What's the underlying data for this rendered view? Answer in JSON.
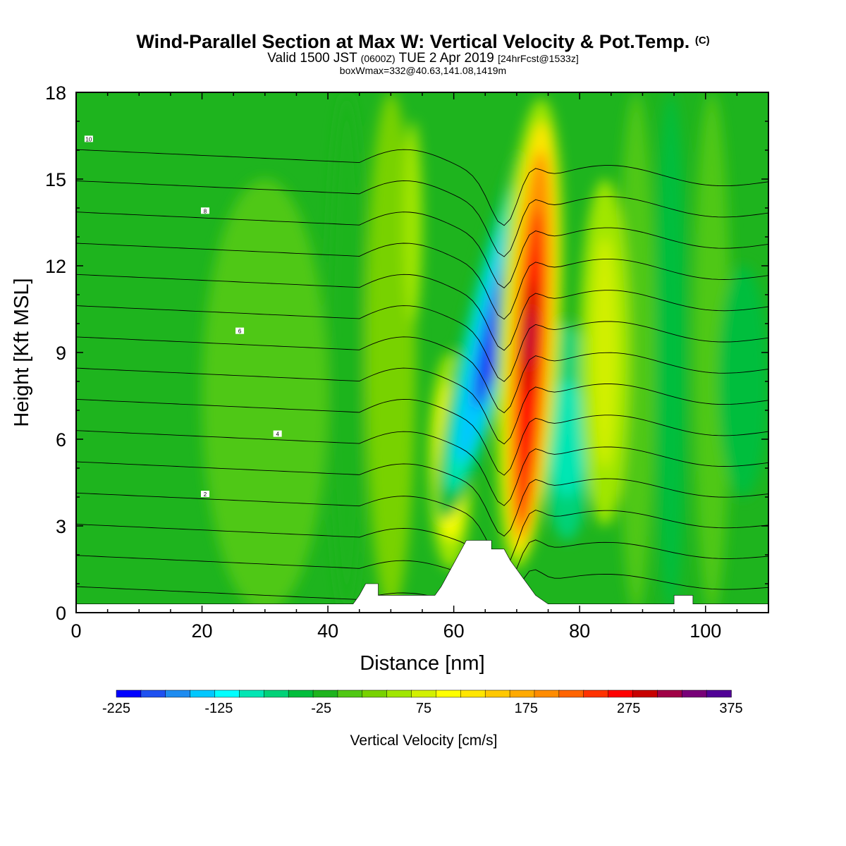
{
  "title": {
    "main": "Wind-Parallel Section at Max W: Vertical Velocity & Pot.Temp.",
    "mark": "(C)",
    "valid_prefix": "Valid 1500 JST",
    "valid_utc": "(0600Z)",
    "valid_date": "TUE 2 Apr 2019",
    "valid_fcst": "[24hrFcst@1533z]",
    "box": "boxWmax=332@40.63,141.08,1419m"
  },
  "chart_data": {
    "type": "heatmap",
    "xlabel": "Distance [nm]",
    "ylabel": "Height [Kft MSL]",
    "xlim": [
      0,
      110
    ],
    "ylim": [
      0,
      18
    ],
    "x_ticks": [
      0,
      20,
      40,
      60,
      80,
      100
    ],
    "y_ticks": [
      0,
      3,
      6,
      9,
      12,
      15,
      18
    ],
    "colorbar": {
      "title": "Vertical Velocity [cm/s]",
      "min": -225,
      "max": 375,
      "step": 25,
      "labels": [
        "-225",
        "-125",
        "-25",
        "75",
        "175",
        "275",
        "375"
      ],
      "colors": [
        "#0000ff",
        "#1e50f0",
        "#1e8cf0",
        "#00c8ff",
        "#00ffff",
        "#00e6b4",
        "#00d278",
        "#00be3c",
        "#1eb41e",
        "#50c814",
        "#78d200",
        "#a0e600",
        "#d2f000",
        "#ffff00",
        "#ffe600",
        "#ffc800",
        "#ffaa00",
        "#ff8c00",
        "#ff6400",
        "#ff3200",
        "#ff0000",
        "#c80000",
        "#a00046",
        "#780078",
        "#500096"
      ]
    },
    "velocity_features": [
      {
        "label": "downdraft core",
        "x_range": [
          64,
          70
        ],
        "y_range": [
          2.5,
          16
        ],
        "peak_value": -225
      },
      {
        "label": "updraft core",
        "x_range": [
          69,
          75
        ],
        "y_range": [
          2,
          17
        ],
        "peak_value": 332
      },
      {
        "label": "secondary updraft",
        "x_range": [
          56,
          62
        ],
        "y_range": [
          2.5,
          8
        ],
        "peak_value": 130
      },
      {
        "label": "downwind updraft",
        "x_range": [
          81,
          87
        ],
        "y_range": [
          4,
          14
        ],
        "peak_value": 75
      },
      {
        "label": "downwind downdraft",
        "x_range": [
          74,
          82
        ],
        "y_range": [
          3,
          10
        ],
        "peak_value": -100
      }
    ],
    "theta_contours": [
      {
        "label": "2",
        "y_upstream": 4.3
      },
      {
        "label": "4",
        "y_upstream": 6.5
      },
      {
        "label": "6",
        "y_upstream": 10.0
      },
      {
        "label": "8",
        "y_upstream": 14.1
      },
      {
        "label": "10",
        "y_upstream": 16.4
      }
    ],
    "terrain": [
      [
        0,
        0.3
      ],
      [
        44,
        0.3
      ],
      [
        45,
        0.6
      ],
      [
        46,
        1.0
      ],
      [
        48,
        1.0
      ],
      [
        48,
        0.6
      ],
      [
        57,
        0.6
      ],
      [
        58,
        0.9
      ],
      [
        59,
        1.3
      ],
      [
        60,
        1.7
      ],
      [
        61,
        2.1
      ],
      [
        62,
        2.5
      ],
      [
        66,
        2.5
      ],
      [
        66,
        2.2
      ],
      [
        68,
        2.2
      ],
      [
        69,
        1.8
      ],
      [
        70,
        1.5
      ],
      [
        71,
        1.2
      ],
      [
        72,
        0.9
      ],
      [
        73,
        0.6
      ],
      [
        75,
        0.3
      ],
      [
        95,
        0.3
      ],
      [
        95,
        0.6
      ],
      [
        98,
        0.6
      ],
      [
        98,
        0.3
      ],
      [
        110,
        0.3
      ]
    ]
  }
}
